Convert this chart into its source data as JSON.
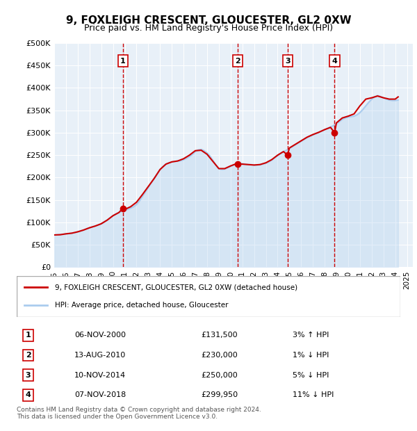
{
  "title": "9, FOXLEIGH CRESCENT, GLOUCESTER, GL2 0XW",
  "subtitle": "Price paid vs. HM Land Registry's House Price Index (HPI)",
  "ylabel_ticks": [
    "£0",
    "£50K",
    "£100K",
    "£150K",
    "£200K",
    "£250K",
    "£300K",
    "£350K",
    "£400K",
    "£450K",
    "£500K"
  ],
  "ytick_values": [
    0,
    50000,
    100000,
    150000,
    200000,
    250000,
    300000,
    350000,
    400000,
    450000,
    500000
  ],
  "ylim": [
    0,
    500000
  ],
  "xlim_start": 1995.0,
  "xlim_end": 2025.5,
  "hpi_color": "#aaccee",
  "price_color": "#cc0000",
  "background_color": "#e8f0f8",
  "legend_label_price": "9, FOXLEIGH CRESCENT, GLOUCESTER, GL2 0XW (detached house)",
  "legend_label_hpi": "HPI: Average price, detached house, Gloucester",
  "transactions": [
    {
      "num": 1,
      "date": "06-NOV-2000",
      "price": 131500,
      "pct": "3%",
      "dir": "↑",
      "year": 2000.85
    },
    {
      "num": 2,
      "date": "13-AUG-2010",
      "price": 230000,
      "pct": "1%",
      "dir": "↓",
      "year": 2010.62
    },
    {
      "num": 3,
      "date": "10-NOV-2014",
      "price": 250000,
      "pct": "5%",
      "dir": "↓",
      "year": 2014.85
    },
    {
      "num": 4,
      "date": "07-NOV-2018",
      "price": 299950,
      "pct": "11%",
      "dir": "↓",
      "year": 2018.85
    }
  ],
  "footer": "Contains HM Land Registry data © Crown copyright and database right 2024.\nThis data is licensed under the Open Government Licence v3.0.",
  "hpi_data": {
    "years": [
      1995.0,
      1995.25,
      1995.5,
      1995.75,
      1996.0,
      1996.25,
      1996.5,
      1996.75,
      1997.0,
      1997.25,
      1997.5,
      1997.75,
      1998.0,
      1998.25,
      1998.5,
      1998.75,
      1999.0,
      1999.25,
      1999.5,
      1999.75,
      2000.0,
      2000.25,
      2000.5,
      2000.75,
      2001.0,
      2001.25,
      2001.5,
      2001.75,
      2002.0,
      2002.25,
      2002.5,
      2002.75,
      2003.0,
      2003.25,
      2003.5,
      2003.75,
      2004.0,
      2004.25,
      2004.5,
      2004.75,
      2005.0,
      2005.25,
      2005.5,
      2005.75,
      2006.0,
      2006.25,
      2006.5,
      2006.75,
      2007.0,
      2007.25,
      2007.5,
      2007.75,
      2008.0,
      2008.25,
      2008.5,
      2008.75,
      2009.0,
      2009.25,
      2009.5,
      2009.75,
      2010.0,
      2010.25,
      2010.5,
      2010.75,
      2011.0,
      2011.25,
      2011.5,
      2011.75,
      2012.0,
      2012.25,
      2012.5,
      2012.75,
      2013.0,
      2013.25,
      2013.5,
      2013.75,
      2014.0,
      2014.25,
      2014.5,
      2014.75,
      2015.0,
      2015.25,
      2015.5,
      2015.75,
      2016.0,
      2016.25,
      2016.5,
      2016.75,
      2017.0,
      2017.25,
      2017.5,
      2017.75,
      2018.0,
      2018.25,
      2018.5,
      2018.75,
      2019.0,
      2019.25,
      2019.5,
      2019.75,
      2020.0,
      2020.25,
      2020.5,
      2020.75,
      2021.0,
      2021.25,
      2021.5,
      2021.75,
      2022.0,
      2022.25,
      2022.5,
      2022.75,
      2023.0,
      2023.25,
      2023.5,
      2023.75,
      2024.0,
      2024.25
    ],
    "values": [
      72000,
      72500,
      73000,
      73500,
      74500,
      75000,
      76000,
      77000,
      79000,
      81000,
      83000,
      86000,
      88000,
      90000,
      92000,
      94000,
      97000,
      101000,
      105000,
      110000,
      115000,
      119000,
      122000,
      125000,
      127000,
      129000,
      132000,
      135000,
      140000,
      148000,
      158000,
      168000,
      178000,
      188000,
      198000,
      208000,
      218000,
      225000,
      230000,
      233000,
      235000,
      236000,
      237000,
      237500,
      240000,
      243000,
      247000,
      252000,
      258000,
      262000,
      263000,
      260000,
      255000,
      248000,
      238000,
      228000,
      220000,
      218000,
      219000,
      222000,
      225000,
      228000,
      231000,
      232000,
      231000,
      230000,
      229000,
      229000,
      228000,
      228000,
      229000,
      230000,
      232000,
      235000,
      239000,
      244000,
      249000,
      254000,
      258000,
      261000,
      265000,
      269000,
      273000,
      277000,
      281000,
      285000,
      289000,
      292000,
      295000,
      298000,
      301000,
      304000,
      307000,
      310000,
      313000,
      316000,
      320000,
      325000,
      330000,
      333000,
      335000,
      336000,
      337000,
      340000,
      345000,
      352000,
      360000,
      368000,
      375000,
      380000,
      383000,
      381000,
      378000,
      375000,
      373000,
      372000,
      372000,
      373000
    ]
  },
  "price_line_data": {
    "years": [
      1995.0,
      1995.5,
      1996.0,
      1996.5,
      1997.0,
      1997.5,
      1998.0,
      1998.5,
      1999.0,
      1999.5,
      2000.0,
      2000.5,
      2000.85,
      2001.0,
      2001.5,
      2002.0,
      2002.5,
      2003.0,
      2003.5,
      2004.0,
      2004.5,
      2005.0,
      2005.5,
      2006.0,
      2006.5,
      2007.0,
      2007.5,
      2008.0,
      2008.5,
      2009.0,
      2009.5,
      2010.0,
      2010.5,
      2010.62,
      2011.0,
      2011.5,
      2012.0,
      2012.5,
      2013.0,
      2013.5,
      2014.0,
      2014.5,
      2014.85,
      2015.0,
      2015.5,
      2016.0,
      2016.5,
      2017.0,
      2017.5,
      2018.0,
      2018.5,
      2018.85,
      2019.0,
      2019.5,
      2020.0,
      2020.5,
      2021.0,
      2021.5,
      2022.0,
      2022.5,
      2023.0,
      2023.5,
      2024.0,
      2024.25
    ],
    "values": [
      72000,
      72500,
      74500,
      76000,
      79000,
      83000,
      88000,
      92000,
      97000,
      105000,
      115000,
      122000,
      131500,
      129000,
      135000,
      145000,
      162000,
      180000,
      198000,
      218000,
      230000,
      235000,
      237000,
      242000,
      250000,
      260000,
      261000,
      252000,
      236000,
      220000,
      220000,
      226000,
      231000,
      230000,
      230000,
      229000,
      228000,
      229000,
      233000,
      240000,
      250000,
      258000,
      250000,
      266000,
      274000,
      282000,
      290000,
      296000,
      301000,
      307000,
      312000,
      299950,
      322000,
      333000,
      337000,
      342000,
      360000,
      375000,
      378000,
      382000,
      378000,
      375000,
      375000,
      380000
    ]
  }
}
